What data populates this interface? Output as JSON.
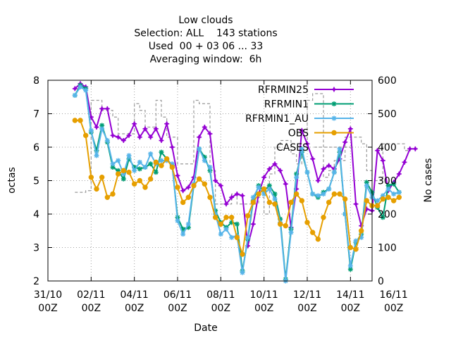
{
  "chart_data": {
    "type": "line",
    "title_lines": [
      "Low clouds",
      "Selection: ALL    143 stations",
      "Used  00 + 03 06 ... 33",
      "Averaging window:  6h"
    ],
    "xlabel": "Date",
    "ylabel": "octas",
    "y2label": "No cases",
    "ylim": [
      2,
      8
    ],
    "y2lim": [
      0,
      600
    ],
    "xlim": [
      0,
      15
    ],
    "y_ticks": [
      "2",
      "3",
      "4",
      "5",
      "6",
      "7",
      "8"
    ],
    "y2_ticks": [
      "0",
      "100",
      "200",
      "300",
      "400",
      "500",
      "600"
    ],
    "x_ticks": [
      {
        "top": "31/10",
        "bottom": "00Z"
      },
      {
        "top": "02/11",
        "bottom": "00Z"
      },
      {
        "top": "04/11",
        "bottom": "00Z"
      },
      {
        "top": "06/11",
        "bottom": "00Z"
      },
      {
        "top": "08/11",
        "bottom": "00Z"
      },
      {
        "top": "10/11",
        "bottom": "00Z"
      },
      {
        "top": "12/11",
        "bottom": "00Z"
      },
      {
        "top": "14/11",
        "bottom": "00Z"
      },
      {
        "top": "16/11",
        "bottom": "00Z"
      }
    ],
    "grid": true,
    "legend_position": "top-right",
    "x_step_days": 0.25,
    "x_start_day": 1.25,
    "series": [
      {
        "name": "RFRMIN25",
        "color": "#9400d3",
        "marker": "cross",
        "values": [
          7.75,
          7.9,
          7.8,
          6.9,
          6.6,
          7.15,
          7.15,
          6.35,
          6.3,
          6.2,
          6.35,
          6.7,
          6.3,
          6.55,
          6.3,
          6.55,
          6.2,
          6.7,
          6.0,
          5.15,
          4.7,
          4.8,
          5.1,
          6.3,
          6.6,
          6.4,
          5.0,
          4.85,
          4.3,
          4.5,
          4.6,
          4.55,
          3.05,
          3.7,
          4.6,
          5.1,
          5.35,
          5.5,
          5.3,
          4.9,
          3.6,
          4.75,
          6.5,
          6.1,
          5.65,
          5.0,
          5.35,
          5.45,
          5.35,
          5.65,
          6.15,
          6.55,
          4.3,
          3.65,
          4.15,
          4.1,
          5.9,
          5.6,
          4.7,
          4.95,
          5.2,
          5.55,
          5.95,
          5.95
        ],
        "start_index": 0
      },
      {
        "name": "RFRMIN1",
        "color": "#009e73",
        "marker": "star",
        "values": [
          7.55,
          7.85,
          7.75,
          6.45,
          5.9,
          6.65,
          6.15,
          5.4,
          5.3,
          5.05,
          5.65,
          5.4,
          5.35,
          5.4,
          5.5,
          5.25,
          5.85,
          5.65,
          5.45,
          3.9,
          3.55,
          3.6,
          4.85,
          5.95,
          5.7,
          5.3,
          4.1,
          3.75,
          3.6,
          3.75,
          3.7,
          2.3,
          3.25,
          4.4,
          4.85,
          4.7,
          4.85,
          4.6,
          3.85,
          2.05,
          3.55,
          5.2,
          5.85,
          5.25,
          4.6,
          4.5,
          4.65,
          4.75,
          5.25,
          5.85,
          4.0,
          2.35,
          3.15,
          3.4,
          4.95,
          4.65,
          4.2,
          3.9,
          4.85,
          4.9,
          4.65
        ],
        "start_index": 0
      },
      {
        "name": "RFRMIN1_AU",
        "color": "#56b4e9",
        "marker": "star",
        "values": [
          7.55,
          7.8,
          7.7,
          6.5,
          5.75,
          6.55,
          6.2,
          5.5,
          5.6,
          5.2,
          5.75,
          5.3,
          5.55,
          5.4,
          5.8,
          5.5,
          5.6,
          5.6,
          5.5,
          3.8,
          3.4,
          3.7,
          4.9,
          5.95,
          5.6,
          5.4,
          4.0,
          3.4,
          3.55,
          3.3,
          3.35,
          2.25,
          3.3,
          4.5,
          4.8,
          4.6,
          4.75,
          4.45,
          3.75,
          2.0,
          3.45,
          5.1,
          5.95,
          5.25,
          4.6,
          4.55,
          4.6,
          4.75,
          5.25,
          5.95,
          4.0,
          2.45,
          3.2,
          3.3,
          4.85,
          4.5,
          4.4,
          4.55,
          4.75,
          4.6,
          4.65
        ],
        "start_index": 0
      },
      {
        "name": "OBS",
        "color": "#e69f00",
        "marker": "circle",
        "values": [
          6.8,
          6.8,
          6.35,
          5.1,
          4.75,
          5.1,
          4.5,
          4.6,
          5.2,
          5.3,
          5.25,
          4.9,
          5.0,
          4.8,
          5.05,
          5.55,
          5.45,
          5.65,
          5.4,
          4.8,
          4.35,
          4.5,
          4.85,
          5.05,
          4.9,
          4.5,
          3.9,
          3.7,
          3.9,
          3.9,
          3.3,
          2.8,
          3.95,
          4.35,
          4.6,
          4.75,
          4.35,
          4.3,
          3.7,
          3.65,
          4.35,
          4.6,
          4.4,
          3.75,
          3.45,
          3.25,
          3.9,
          4.35,
          4.6,
          4.6,
          4.45,
          3.0,
          2.95,
          3.5,
          4.4,
          4.25,
          4.25,
          4.45,
          4.5,
          4.4,
          4.5
        ],
        "start_index": 0
      },
      {
        "name": "CASES",
        "color": "#999999",
        "axis": "y2",
        "style": "dashed",
        "values": [
          265,
          265,
          270,
          540,
          540,
          510,
          510,
          490,
          440,
          440,
          440,
          530,
          510,
          460,
          460,
          540,
          490,
          430,
          430,
          350,
          350,
          350,
          540,
          530,
          530,
          330,
          230,
          230,
          230,
          260,
          230,
          230,
          230,
          230,
          250,
          200,
          320,
          400,
          420,
          420,
          380,
          350,
          390,
          540,
          560,
          560,
          310,
          330,
          360,
          360,
          430,
          430,
          430,
          410,
          330,
          300,
          300,
          410,
          410,
          410,
          410,
          390,
          390
        ],
        "start_index": 0
      }
    ]
  }
}
